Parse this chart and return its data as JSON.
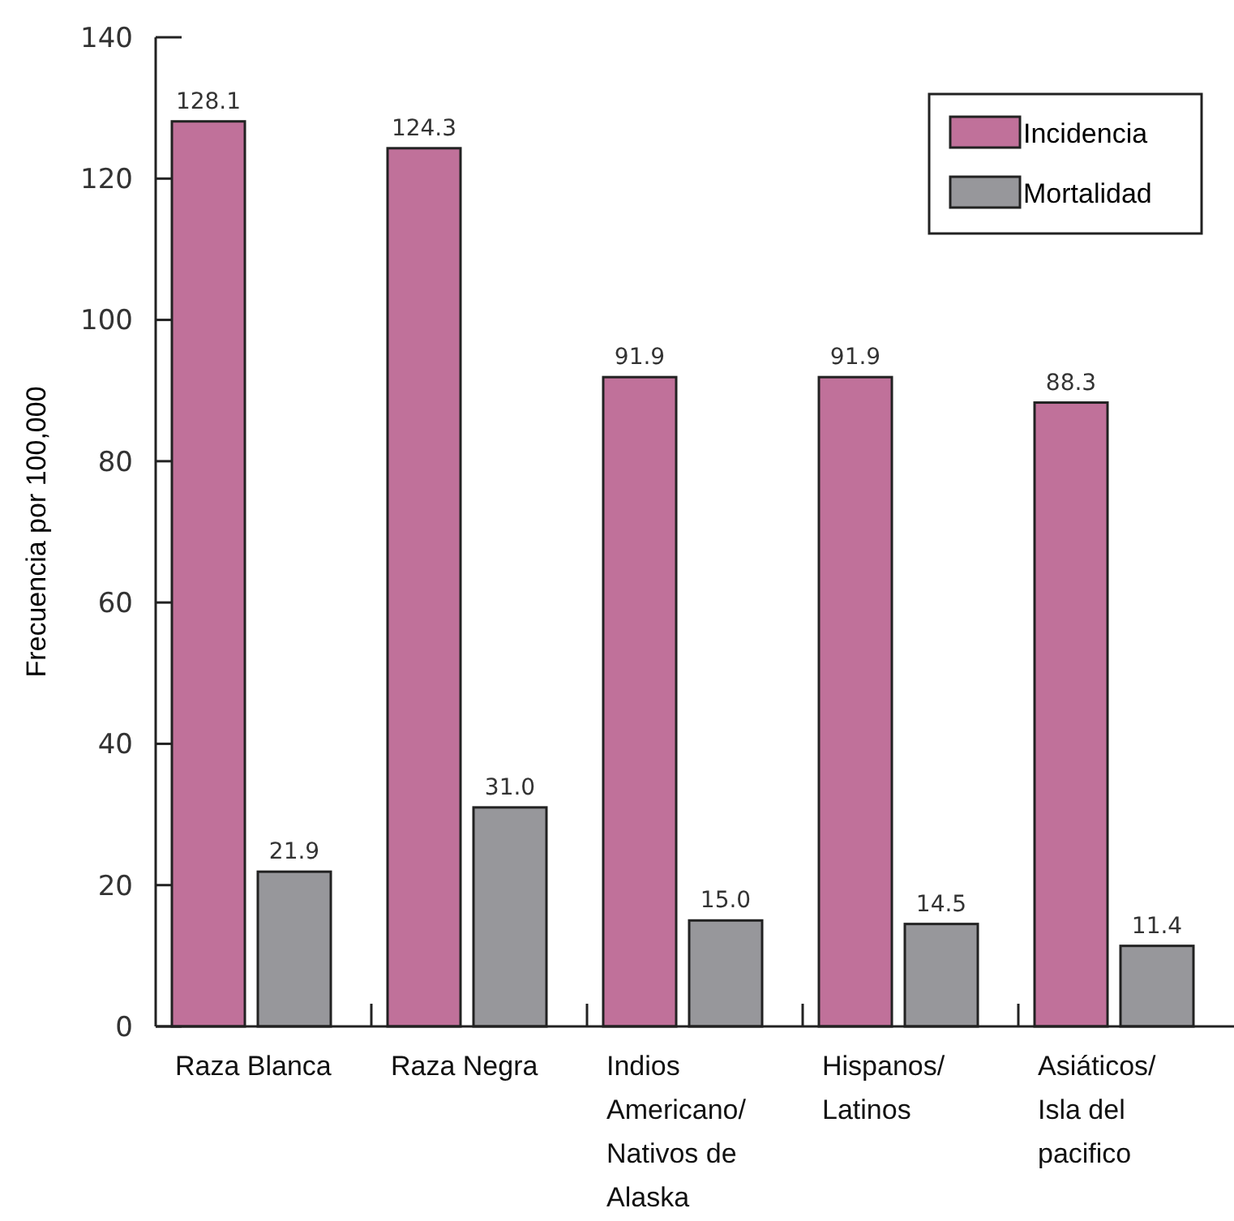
{
  "chart_data": {
    "type": "bar",
    "ylabel": "Frecuencia por 100,000",
    "categories": [
      "Raza Blanca",
      "Raza Negra",
      "Indios Americano/ Nativos de Alaska",
      "Hispanos/ Latinos",
      "Asiáticos/ Isla del pacifico"
    ],
    "series": [
      {
        "name": "Incidencia",
        "color": "#c0719a",
        "values": [
          128.1,
          124.3,
          91.9,
          91.9,
          88.3
        ],
        "value_labels": [
          "128.1",
          "124.3",
          "91.9",
          "91.9",
          "88.3"
        ]
      },
      {
        "name": "Mortalidad",
        "color": "#97979b",
        "values": [
          21.9,
          31.0,
          15.0,
          14.5,
          11.4
        ],
        "value_labels": [
          "21.9",
          "31.0",
          "15.0",
          "14.5",
          "11.4"
        ]
      }
    ],
    "ylim": [
      0,
      140
    ],
    "yticks": [
      0,
      20,
      40,
      60,
      80,
      100,
      120,
      140
    ],
    "legend": "top right",
    "grid": false
  }
}
